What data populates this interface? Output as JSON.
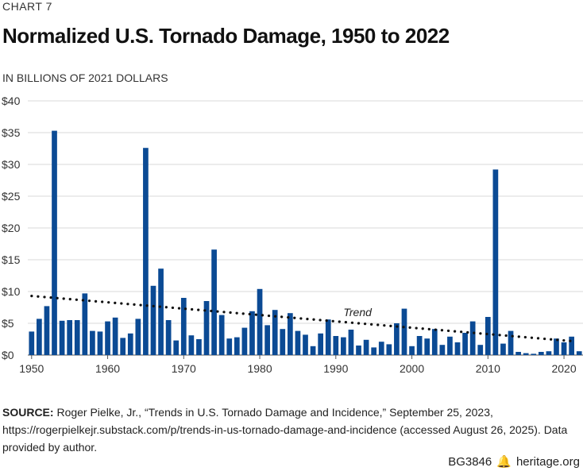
{
  "header": {
    "chart_label": "CHART 7",
    "title": "Normalized U.S. Tornado Damage, 1950 to 2022",
    "unit": "IN BILLIONS OF 2021 DOLLARS"
  },
  "source": {
    "label": "SOURCE:",
    "text": "Roger Pielke, Jr., “Trends in U.S. Tornado Damage and Incidence,” September 25, 2023, https://rogerpielkejr.substack.com/p/trends-in-us-tornado-damage-and-incidence (accessed August 26, 2025). Data provided by author."
  },
  "footer": {
    "code": "BG3846",
    "icon": "liberty-bell-icon",
    "site": "heritage.org"
  },
  "colors": {
    "bar": "#0b4a94",
    "grid": "#d9d9d9",
    "trend": "#111111"
  },
  "chart_data": {
    "type": "bar",
    "title": "Normalized U.S. Tornado Damage, 1950 to 2022",
    "ylabel": "IN BILLIONS OF 2021 DOLLARS",
    "ylim": [
      0,
      40
    ],
    "yticks": [
      0,
      5,
      10,
      15,
      20,
      25,
      30,
      35,
      40
    ],
    "ytick_labels": [
      "$0",
      "$5",
      "$10",
      "$15",
      "$20",
      "$25",
      "$30",
      "$35",
      "$40"
    ],
    "xticks": [
      1950,
      1960,
      1970,
      1980,
      1990,
      2000,
      2010,
      2020
    ],
    "xtick_labels": [
      "1950",
      "1960",
      "1970",
      "1980",
      "1990",
      "2000",
      "2010",
      "2020"
    ],
    "grid": true,
    "x": [
      1950,
      1951,
      1952,
      1953,
      1954,
      1955,
      1956,
      1957,
      1958,
      1959,
      1960,
      1961,
      1962,
      1963,
      1964,
      1965,
      1966,
      1967,
      1968,
      1969,
      1970,
      1971,
      1972,
      1973,
      1974,
      1975,
      1976,
      1977,
      1978,
      1979,
      1980,
      1981,
      1982,
      1983,
      1984,
      1985,
      1986,
      1987,
      1988,
      1989,
      1990,
      1991,
      1992,
      1993,
      1994,
      1995,
      1996,
      1997,
      1998,
      1999,
      2000,
      2001,
      2002,
      2003,
      2004,
      2005,
      2006,
      2007,
      2008,
      2009,
      2010,
      2011,
      2012,
      2013,
      2014,
      2015,
      2016,
      2017,
      2018,
      2019,
      2020,
      2021,
      2022
    ],
    "values": [
      3.7,
      5.7,
      7.7,
      35.3,
      5.4,
      5.5,
      5.5,
      9.7,
      3.8,
      3.7,
      5.3,
      5.9,
      2.7,
      3.4,
      5.7,
      32.6,
      10.9,
      13.6,
      5.5,
      2.3,
      9.0,
      3.1,
      2.5,
      8.5,
      16.6,
      6.3,
      2.6,
      2.8,
      4.3,
      6.9,
      10.4,
      4.7,
      7.1,
      4.1,
      6.6,
      3.8,
      3.2,
      1.4,
      3.4,
      5.6,
      3.0,
      2.8,
      4.0,
      1.5,
      2.4,
      1.2,
      2.1,
      1.7,
      5.0,
      7.3,
      1.4,
      3.0,
      2.6,
      4.1,
      1.6,
      2.9,
      2.0,
      3.5,
      5.3,
      1.6,
      6.0,
      29.2,
      1.8,
      3.8,
      0.5,
      0.3,
      0.2,
      0.5,
      0.6,
      2.6,
      2.0,
      2.9,
      0.6
    ],
    "trend": {
      "label": "Trend",
      "start": [
        1950,
        9.3
      ],
      "end": [
        2021,
        2.2
      ]
    }
  }
}
